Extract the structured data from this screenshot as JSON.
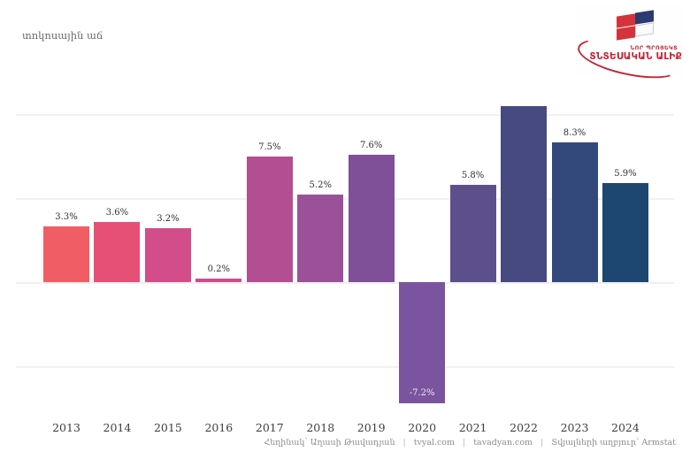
{
  "header": {
    "subtitle": "տոկոսային աճ"
  },
  "logo": {
    "line1": "ՆՈՐ ՊՐՈՅԵԿՏ",
    "line2": "ՏՆՏԵՍԱԿԱՆ ԱԼԻՔ",
    "red": "#c42433",
    "navy": "#2b3a72"
  },
  "chart_data": {
    "type": "bar",
    "title": "տոկոսային աճ",
    "categories": [
      "2013",
      "2014",
      "2015",
      "2016",
      "2017",
      "2018",
      "2019",
      "2020",
      "2021",
      "2022",
      "2023",
      "2024"
    ],
    "values": [
      3.3,
      3.6,
      3.2,
      0.2,
      7.5,
      5.2,
      7.6,
      -7.2,
      5.8,
      null,
      8.3,
      5.9
    ],
    "labels": [
      "3.3%",
      "3.6%",
      "3.2%",
      "0.2%",
      "7.5%",
      "5.2%",
      "7.6%",
      "-7.2%",
      "5.8%",
      null,
      "8.3%",
      "5.9%"
    ],
    "clipped": [
      false,
      false,
      false,
      false,
      false,
      false,
      false,
      false,
      false,
      true,
      false,
      false
    ],
    "bar_colors": [
      "#f05d64",
      "#e65076",
      "#d24d89",
      "#cd4c8e",
      "#b44e92",
      "#9b5199",
      "#7f4f97",
      "#7a549e",
      "#5c4f8c",
      "#474a80",
      "#33497c",
      "#1d4770"
    ],
    "gridlines_pct": [
      10,
      5,
      0,
      -5
    ],
    "ylim_visible": [
      -9.2,
      10.5
    ],
    "xlabel": "",
    "ylabel": "",
    "legend": null,
    "note": "2022 bar extends beyond the top of the plot area and its value label is not visible in the image"
  },
  "footer": {
    "segments": [
      "Հեղինակ՝ Աղասի Թավադյան",
      "tvyal.com",
      "tavadyan.com",
      "Տվյալների աղբյուր՝ Armstat"
    ],
    "separator": "|"
  }
}
